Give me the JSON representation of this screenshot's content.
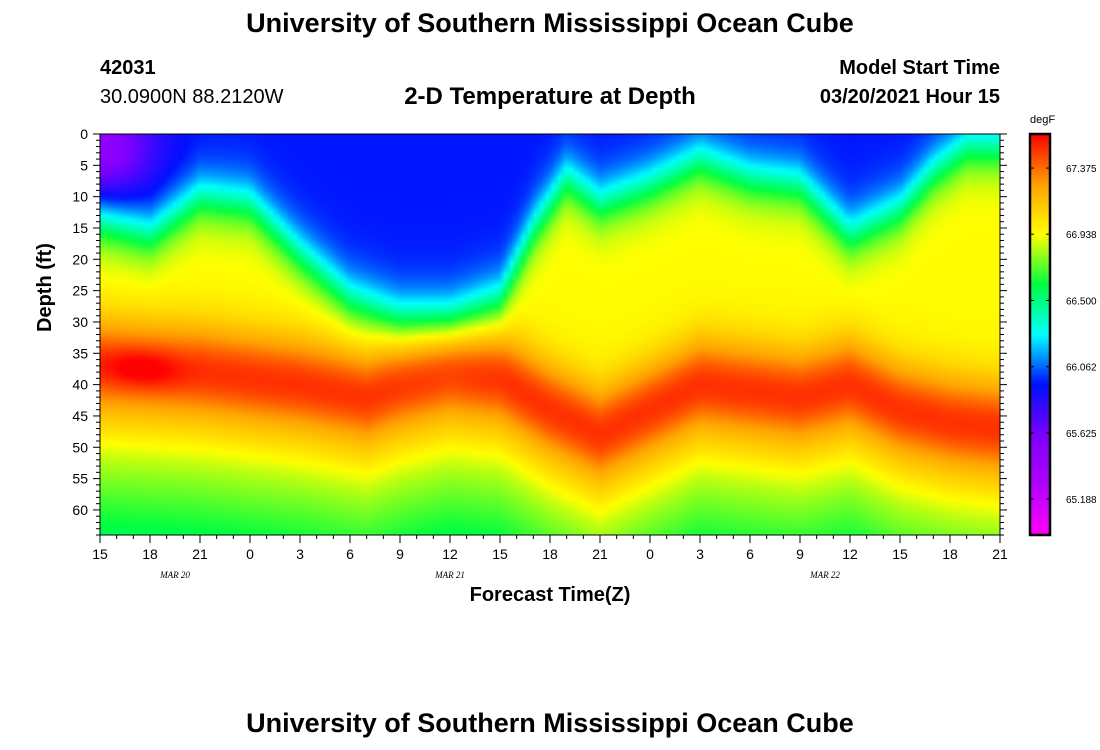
{
  "header": {
    "title": "University of Southern Mississippi Ocean Cube",
    "station_id": "42031",
    "coords": "30.0900N 88.2120W",
    "plot_title": "2-D Temperature at Depth",
    "model_label": "Model Start Time",
    "model_date": "03/20/2021 Hour 15"
  },
  "footer": {
    "title": "University of Southern Mississippi Ocean Cube"
  },
  "chart_data": {
    "type": "heatmap",
    "title": "2-D Temperature at Depth",
    "xlabel": "Forecast Time(Z)",
    "ylabel": "Depth (ft)",
    "x_hours": [
      0,
      54
    ],
    "x_tick_labels": [
      "15",
      "18",
      "21",
      "0",
      "3",
      "6",
      "9",
      "12",
      "15",
      "18",
      "21",
      "0",
      "3",
      "6",
      "9",
      "12",
      "15",
      "18",
      "21"
    ],
    "date_labels": [
      {
        "hour": 4.5,
        "text": "MAR 20"
      },
      {
        "hour": 21,
        "text": "MAR 21"
      },
      {
        "hour": 43.5,
        "text": "MAR 22"
      }
    ],
    "ylim": [
      0,
      64
    ],
    "y_ticks": [
      0,
      5,
      10,
      15,
      20,
      25,
      30,
      35,
      40,
      45,
      50,
      55,
      60
    ],
    "colorbar": {
      "unit": "degF",
      "range": [
        64.95,
        67.6
      ],
      "tick_values": [
        67.375,
        66.938,
        66.5,
        66.062,
        65.625,
        65.188
      ],
      "tick_labels": [
        "67.375",
        "66.938",
        "66.500",
        "66.062",
        "65.625",
        "65.188"
      ],
      "colors": [
        "#ff00ff",
        "#b000ff",
        "#7a00ff",
        "#0010ff",
        "#00ffff",
        "#00ff40",
        "#ffff00",
        "#ffa000",
        "#ff0000"
      ]
    },
    "mixed_layer_depth_ft": [
      [
        0,
        14
      ],
      [
        3,
        16
      ],
      [
        6,
        10
      ],
      [
        9,
        11
      ],
      [
        12,
        19
      ],
      [
        15,
        26
      ],
      [
        18,
        29
      ],
      [
        21,
        29
      ],
      [
        24,
        26
      ],
      [
        26,
        15
      ],
      [
        28,
        7
      ],
      [
        30,
        11
      ],
      [
        33,
        8
      ],
      [
        36,
        4
      ],
      [
        39,
        7
      ],
      [
        42,
        8
      ],
      [
        45,
        16
      ],
      [
        48,
        12
      ],
      [
        50,
        6
      ],
      [
        52,
        2
      ],
      [
        54,
        2
      ]
    ],
    "warm_core_depth_ft": [
      [
        0,
        37
      ],
      [
        6,
        38
      ],
      [
        12,
        40
      ],
      [
        16,
        42
      ],
      [
        18,
        40
      ],
      [
        21,
        38
      ],
      [
        24,
        39
      ],
      [
        27,
        44
      ],
      [
        30,
        48
      ],
      [
        33,
        44
      ],
      [
        36,
        40
      ],
      [
        39,
        41
      ],
      [
        42,
        42
      ],
      [
        45,
        40
      ],
      [
        48,
        44
      ],
      [
        51,
        46
      ],
      [
        54,
        47
      ]
    ]
  }
}
